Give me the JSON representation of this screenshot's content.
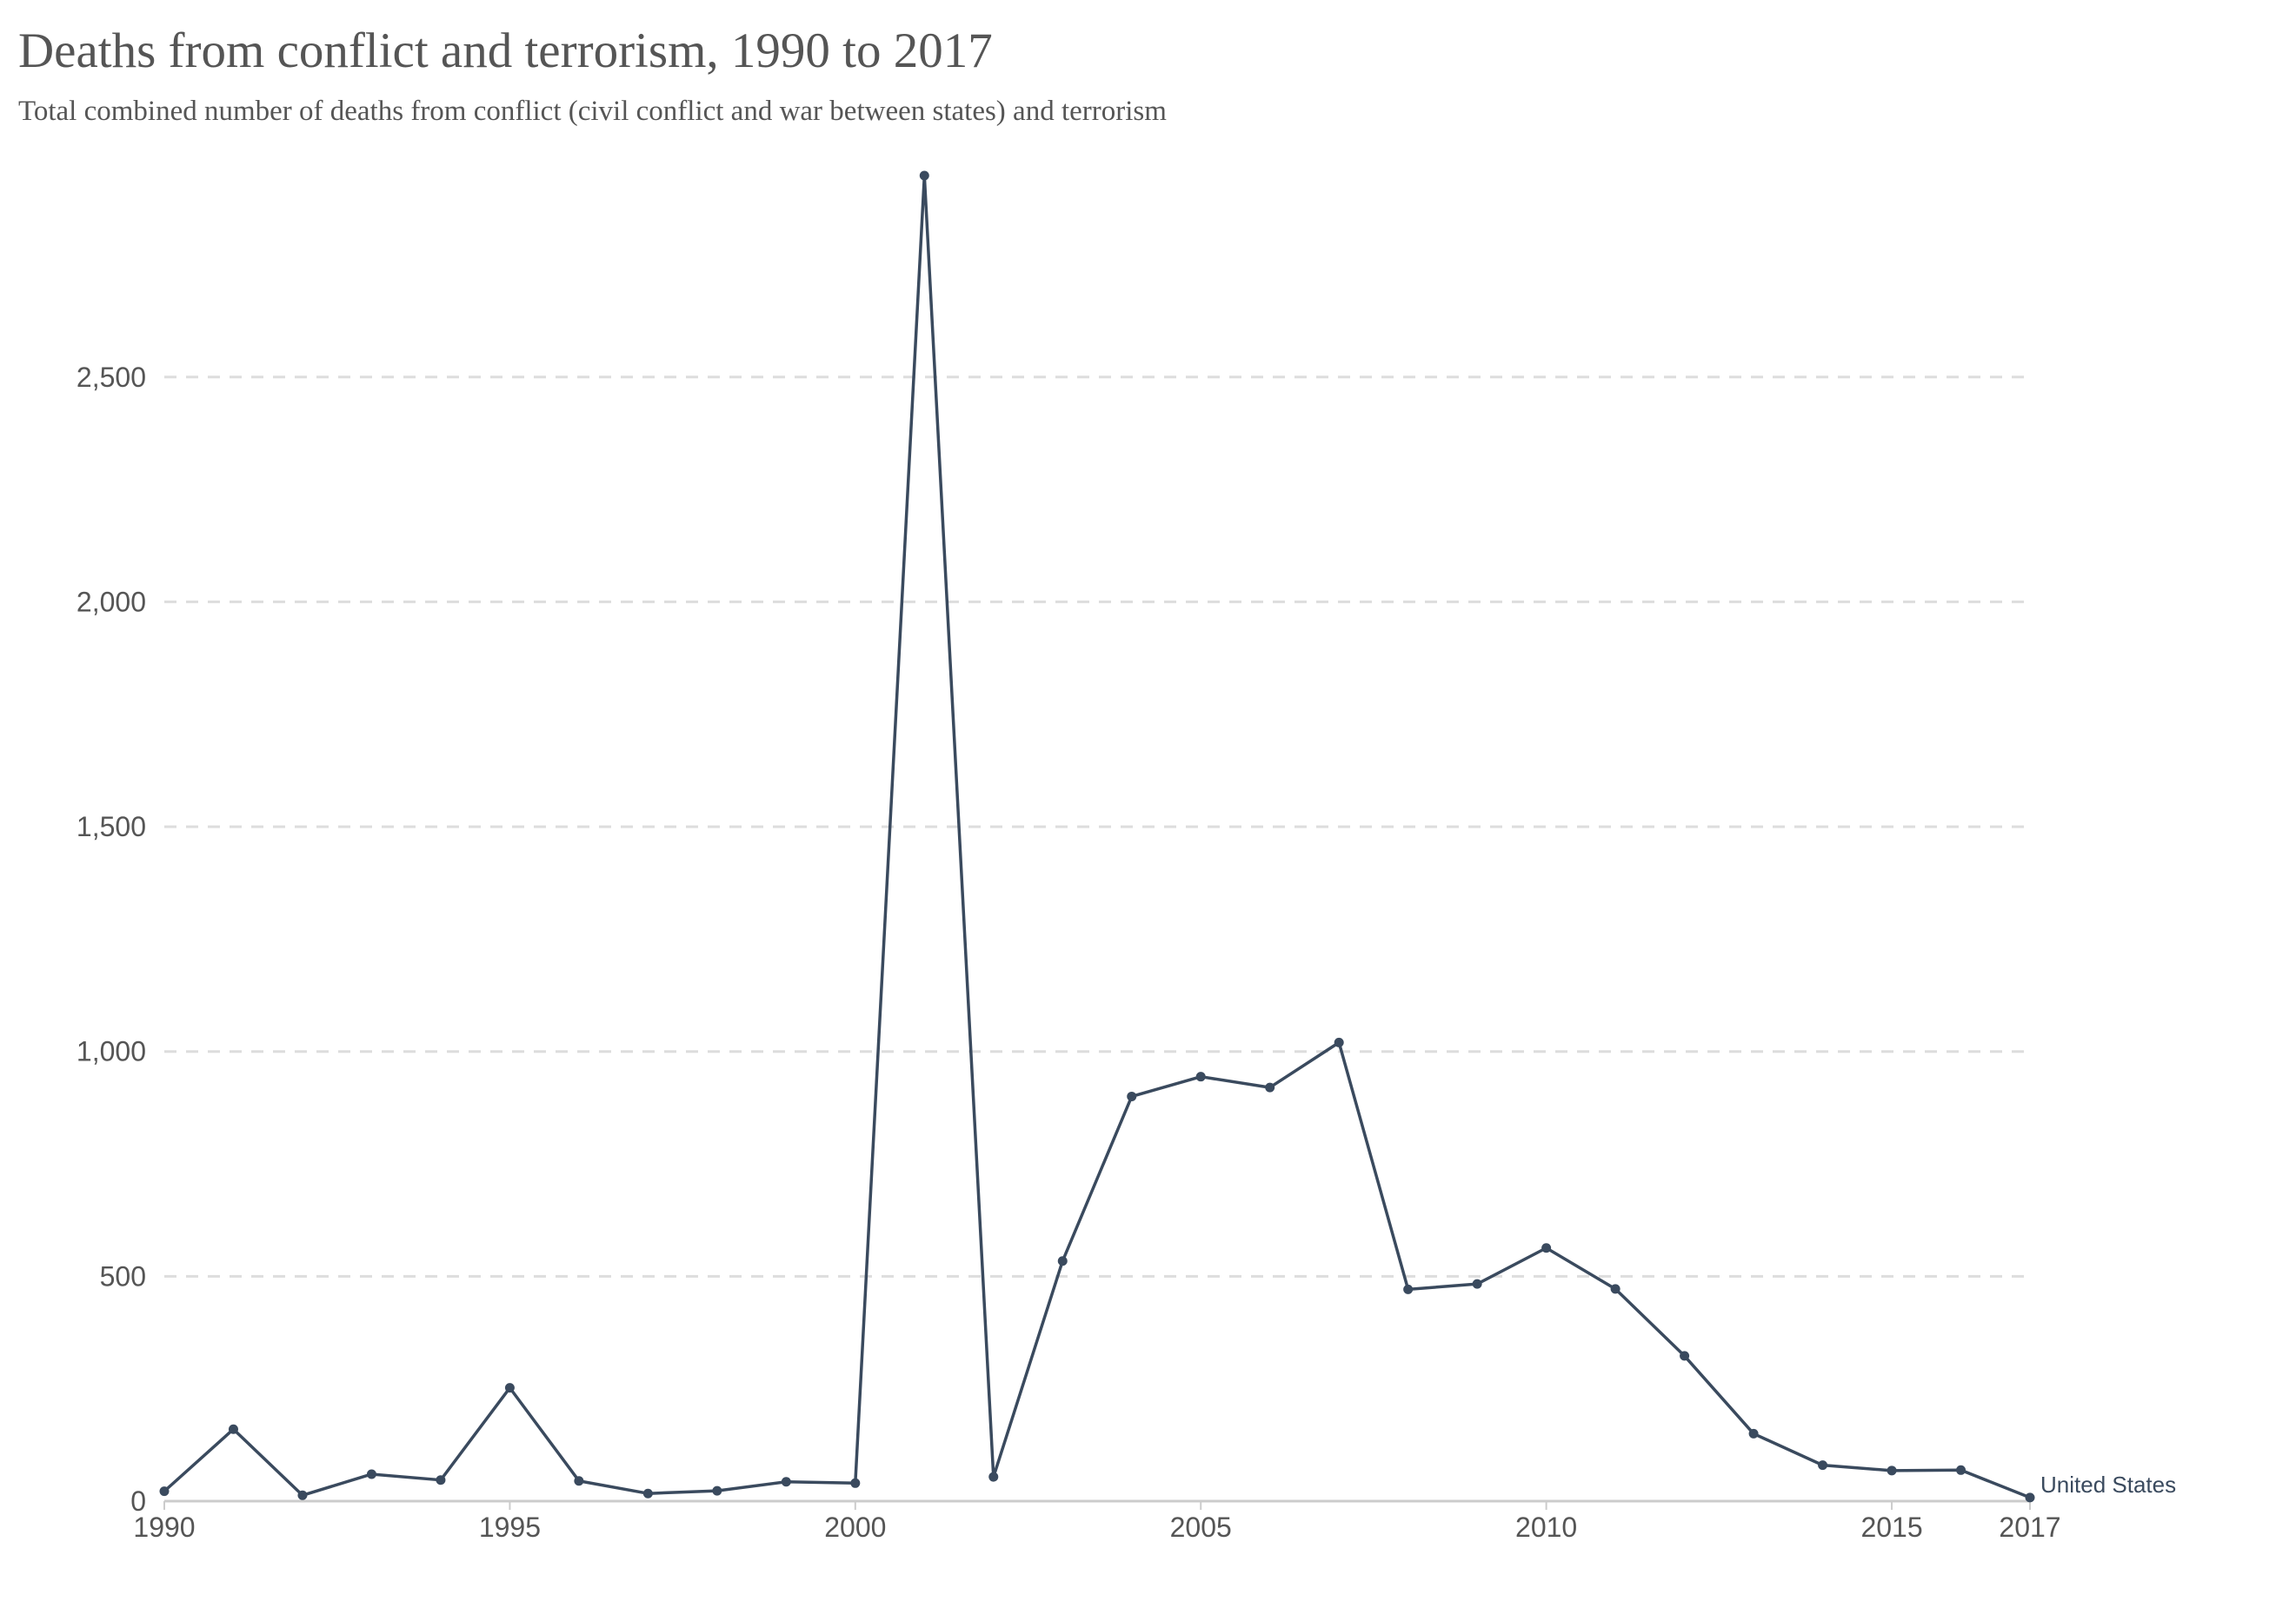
{
  "chart": {
    "title": "Deaths from conflict and terrorism, 1990 to 2017",
    "subtitle": "Total combined number of deaths from conflict (civil conflict and war between states) and terrorism"
  },
  "chart_data": {
    "type": "line",
    "title": "Deaths from conflict and terrorism, 1990 to 2017",
    "subtitle": "Total combined number of deaths from conflict (civil conflict and war between states) and terrorism",
    "xlabel": "",
    "ylabel": "",
    "xlim": [
      1990,
      2017
    ],
    "ylim": [
      0,
      2950
    ],
    "x_ticks": [
      1990,
      1995,
      2000,
      2005,
      2010,
      2015,
      2017
    ],
    "x_tick_labels": [
      "1990",
      "1995",
      "2000",
      "2005",
      "2010",
      "2015",
      "2017"
    ],
    "y_ticks": [
      0,
      500,
      1000,
      1500,
      2000,
      2500
    ],
    "y_tick_labels": [
      "0",
      "500",
      "1,000",
      "1,500",
      "2,000",
      "2,500"
    ],
    "grid": "horizontal dashed",
    "legend": "inline label at end of line",
    "colors": {
      "series": "#3a4a5e",
      "grid": "#dddddd",
      "axis": "#cccccc",
      "text": "#555555"
    },
    "series": [
      {
        "name": "United States",
        "x": [
          1990,
          1991,
          1992,
          1993,
          1994,
          1995,
          1996,
          1997,
          1998,
          1999,
          2000,
          2001,
          2002,
          2003,
          2004,
          2005,
          2006,
          2007,
          2008,
          2009,
          2010,
          2011,
          2012,
          2013,
          2014,
          2015,
          2016,
          2017
        ],
        "values": [
          22,
          160,
          13,
          60,
          47,
          252,
          45,
          17,
          23,
          43,
          40,
          2948,
          54,
          534,
          900,
          944,
          920,
          1020,
          471,
          483,
          563,
          472,
          323,
          150,
          80,
          68,
          69,
          8
        ]
      }
    ]
  }
}
